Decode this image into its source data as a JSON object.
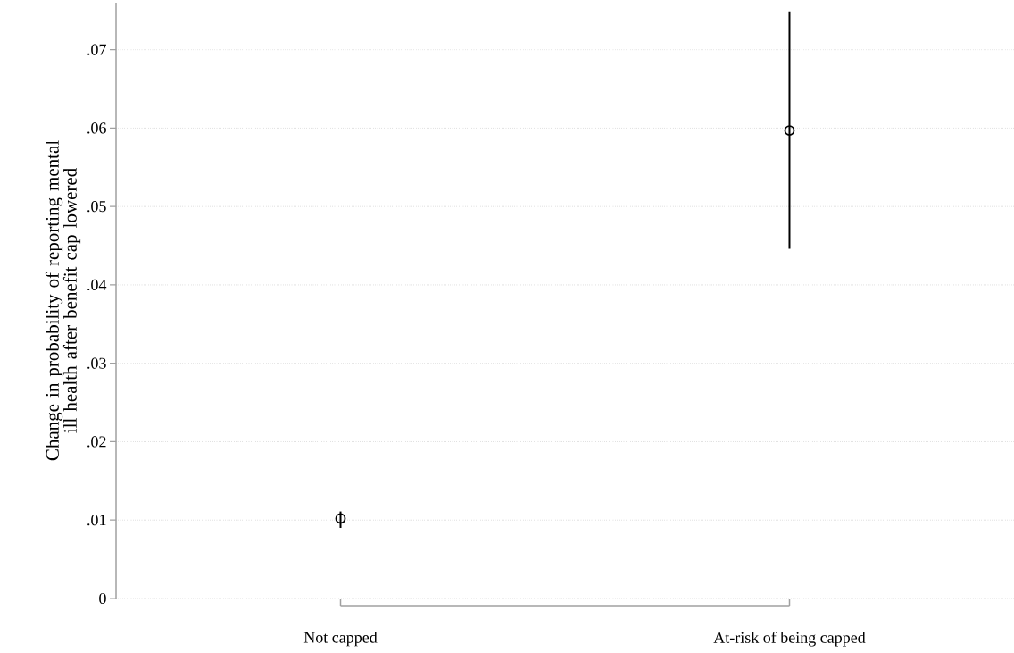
{
  "chart_data": {
    "type": "scatter",
    "ylabel": "Change in probability of reporting mental ill health after benefit cap lowered",
    "categories": [
      "Not capped",
      "At-risk of being capped"
    ],
    "values": [
      0.0102,
      0.0597
    ],
    "errors": [
      [
        0.009,
        0.0111
      ],
      [
        0.0446,
        0.0749
      ]
    ],
    "color": "#000000",
    "marker": "circle",
    "grid": "y",
    "ylim": [
      0,
      0.076
    ],
    "yticks": [
      0,
      {
        "value": 0.01,
        "label": ".01"
      },
      {
        "value": 0.02,
        "label": ".02"
      },
      {
        "value": 0.03,
        "label": ".03"
      },
      {
        "value": 0.04,
        "label": ".04"
      },
      {
        "value": 0.05,
        "label": ".05"
      },
      {
        "value": 0.06,
        "label": ".06"
      },
      {
        "value": 0.07,
        "label": ".07"
      }
    ]
  }
}
